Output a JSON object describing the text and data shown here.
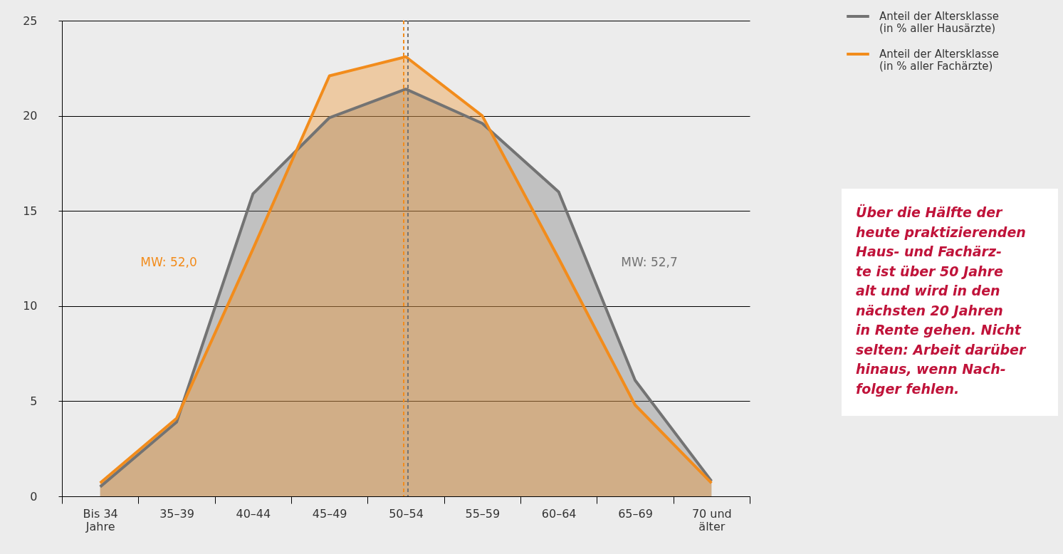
{
  "chart_data": {
    "type": "area",
    "categories": [
      "Bis 34\nJahre",
      "35–39",
      "40–44",
      "45–49",
      "50–54",
      "55–59",
      "60–64",
      "65–69",
      "70 und\nälter"
    ],
    "series": [
      {
        "name": "Anteil der Altersklasse\n(in % aller Hausärzte)",
        "color": "#737373",
        "values": [
          0.5,
          3.9,
          15.9,
          19.9,
          21.4,
          19.6,
          16.0,
          6.1,
          0.8
        ]
      },
      {
        "name": "Anteil der Altersklasse\n(in % aller Fachärzte)",
        "color": "#f28c1c",
        "values": [
          0.7,
          4.1,
          13.0,
          22.1,
          23.1,
          20.0,
          12.5,
          4.8,
          0.7
        ]
      }
    ],
    "ylim": [
      0,
      25
    ],
    "yticks": [
      0,
      5,
      10,
      15,
      20,
      25
    ],
    "grid": "y",
    "legend": "top right",
    "ref_lines": [
      {
        "axis": "x",
        "value": "50–54",
        "color": "#f28c1c",
        "line_style": "dashed"
      },
      {
        "axis": "x",
        "value": "50–54",
        "color": "#737373",
        "line_style": "dashed"
      }
    ],
    "annotations": [
      "MW: 52,7",
      "MW: 52,0",
      "Über die Hälfte der\nheute praktizierenden\nHaus- und Fachärz-\nte ist über 50 Jahre\nalt und wird in den\nnächsten 20 Jahren\nin Rente gehen. Nicht\nselten: Arbeit darüber\nhinaus, wenn Nach-\nfolger fehlen."
    ]
  }
}
